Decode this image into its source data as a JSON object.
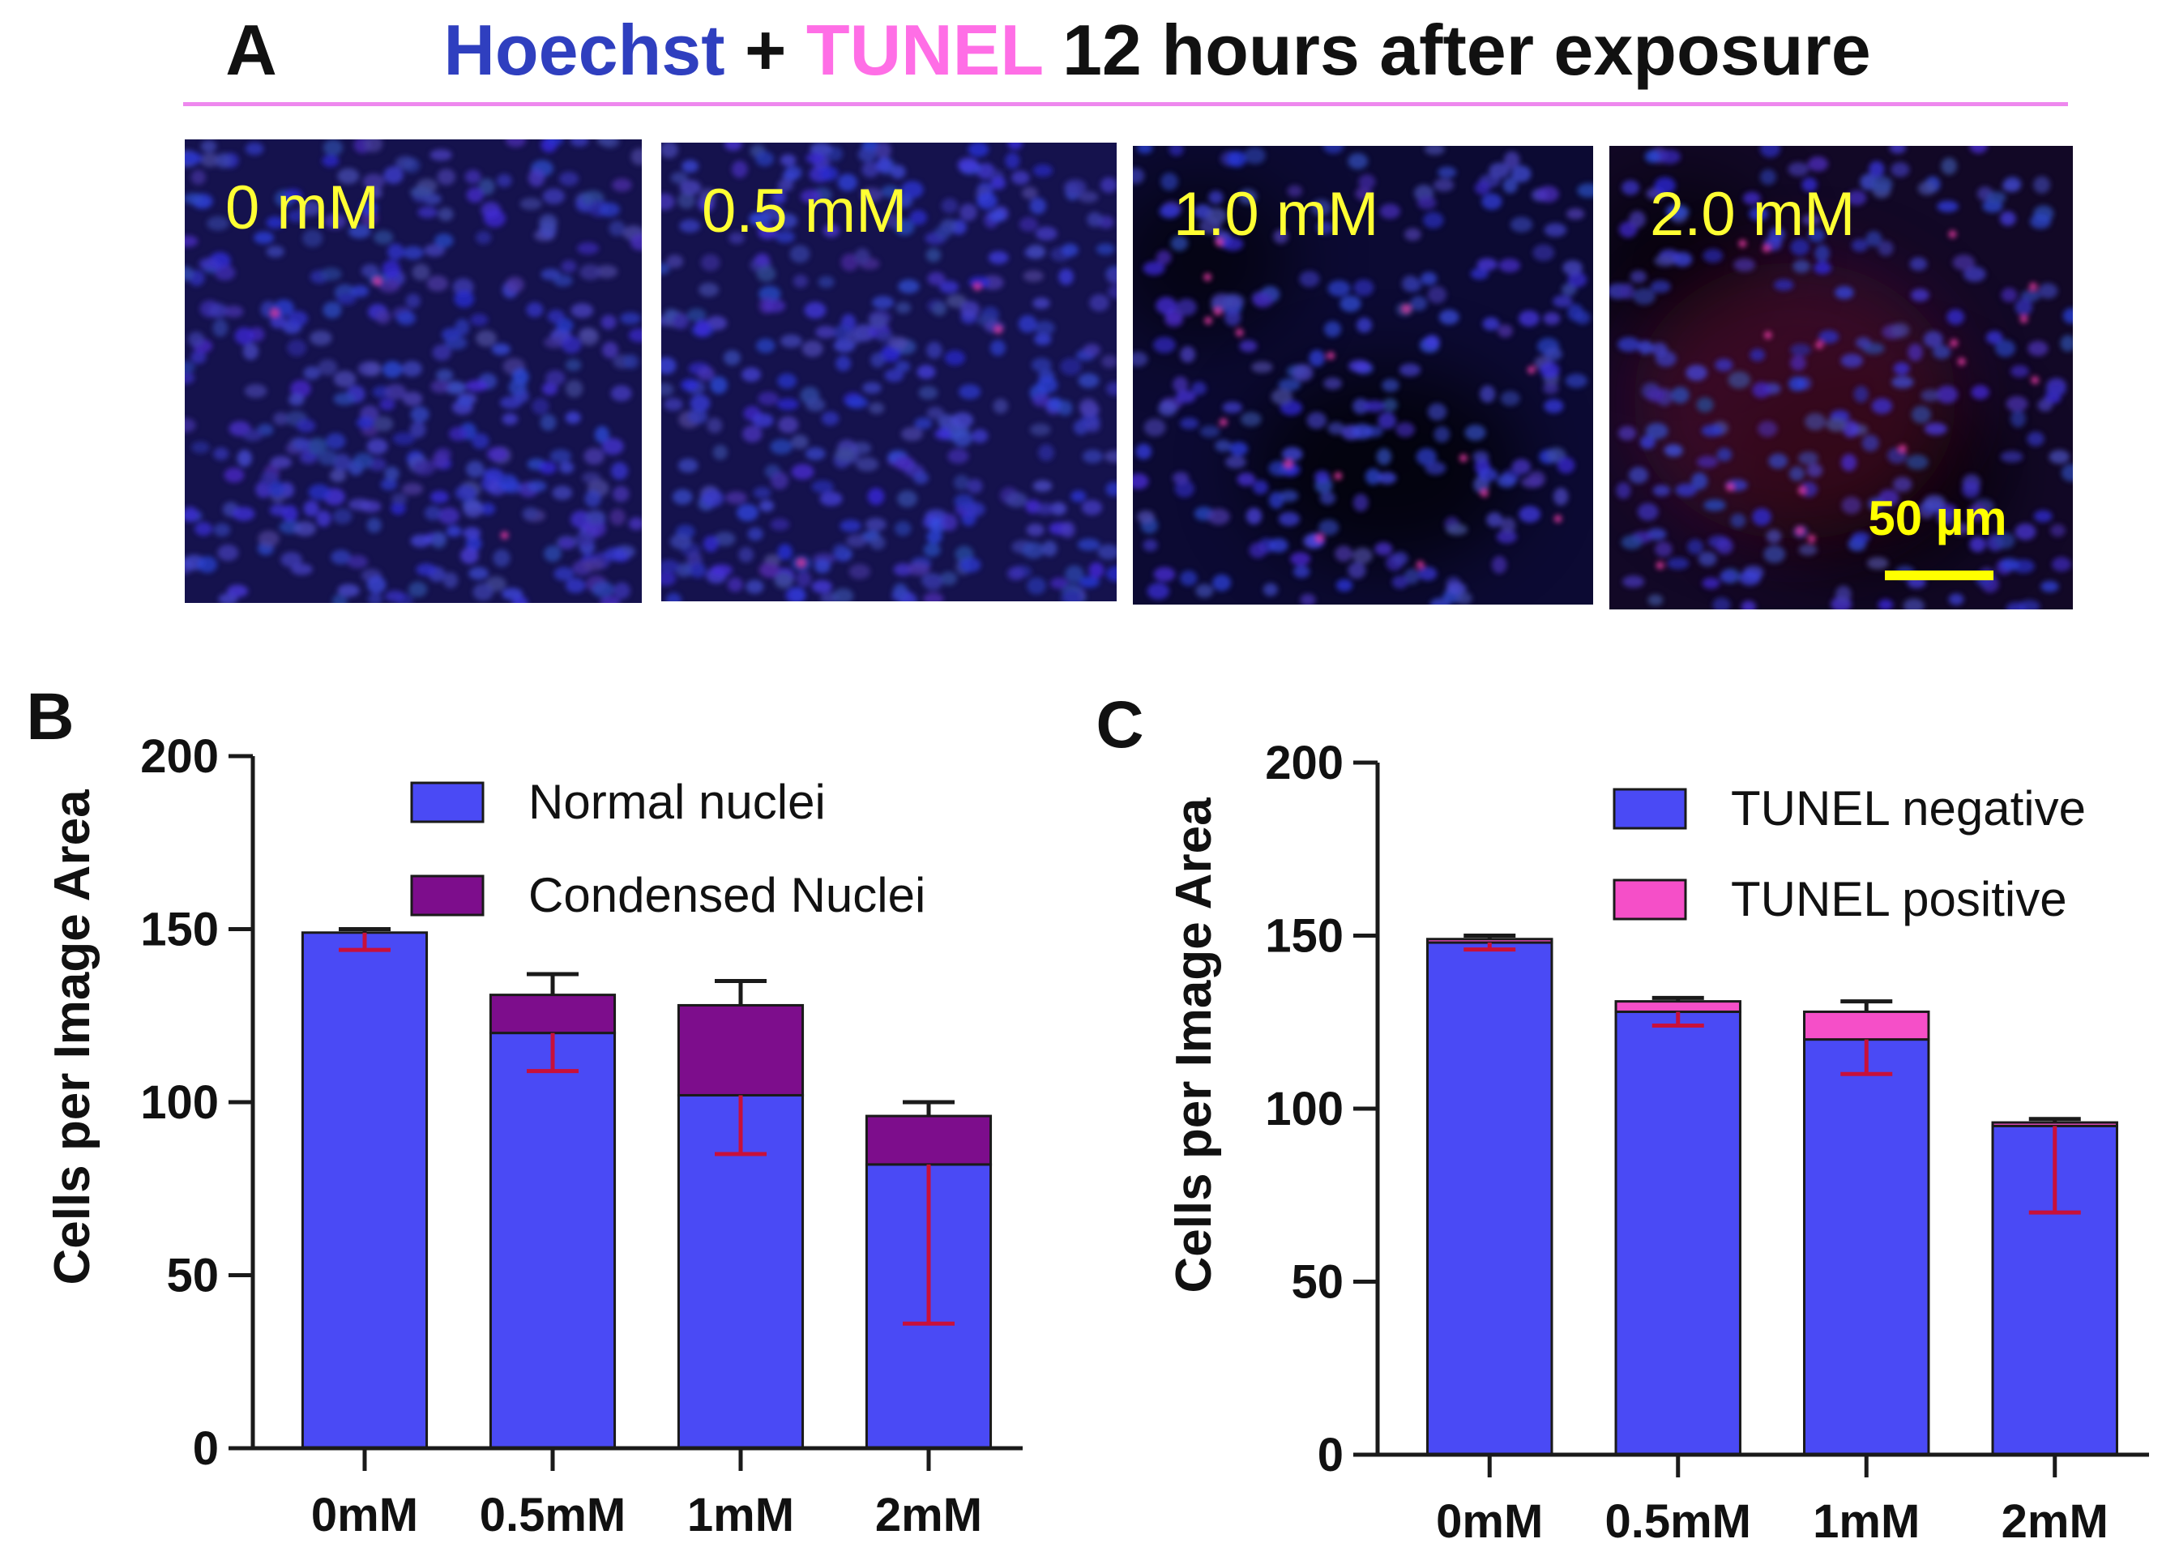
{
  "panel_a": {
    "letter": "A",
    "title_parts": [
      {
        "text": "Hoechst",
        "color": "#2f3fbf"
      },
      {
        "text": " + ",
        "color": "#111111"
      },
      {
        "text": "TUNEL",
        "color": "#ff6ee6"
      },
      {
        "text": " 12 hours after exposure",
        "color": "#111111"
      }
    ],
    "rule_color": "#ee88ee",
    "micrographs": [
      {
        "label": "0 mM",
        "scene": "dense"
      },
      {
        "label": "0.5 mM",
        "scene": "dense"
      },
      {
        "label": "1.0 mM",
        "scene": "sparse"
      },
      {
        "label": "2.0 mM",
        "scene": "sparse-red"
      }
    ],
    "scale_bar": {
      "label": "50 µm",
      "color": "#ffff00"
    },
    "label_color": "#ffff33"
  },
  "chart_data": [
    {
      "panel": "B",
      "type": "bar",
      "stacked": true,
      "ylabel": "Cells per Image Area",
      "ylim": [
        0,
        200
      ],
      "yticks": [
        0,
        50,
        100,
        150,
        200
      ],
      "categories": [
        "0mM",
        "0.5mM",
        "1mM",
        "2mM"
      ],
      "series": [
        {
          "name": "Normal nuclei",
          "color": "#4a4af5",
          "values": [
            149,
            120,
            102,
            82
          ],
          "err_low": [
            5,
            11,
            17,
            46
          ]
        },
        {
          "name": "Condensed Nuclei",
          "color": "#7d0d8c",
          "values": [
            0,
            11,
            26,
            14
          ],
          "err_high": [
            1,
            6,
            7,
            4
          ]
        }
      ],
      "legend": "top-right",
      "error_color": "#c8103a",
      "grid": false
    },
    {
      "panel": "C",
      "type": "bar",
      "stacked": true,
      "ylabel": "Cells per Image Area",
      "ylim": [
        0,
        200
      ],
      "yticks": [
        0,
        50,
        100,
        150,
        200
      ],
      "categories": [
        "0mM",
        "0.5mM",
        "1mM",
        "2mM"
      ],
      "series": [
        {
          "name": "TUNEL negative",
          "color": "#4a4af5",
          "values": [
            148,
            128,
            120,
            95
          ],
          "err_low": [
            2,
            4,
            10,
            25
          ]
        },
        {
          "name": "TUNEL positive",
          "color": "#f54fc8",
          "values": [
            1,
            3,
            8,
            1
          ],
          "err_high": [
            1,
            1,
            3,
            1
          ]
        }
      ],
      "legend": "top-right",
      "error_color": "#c8103a",
      "grid": false
    }
  ]
}
